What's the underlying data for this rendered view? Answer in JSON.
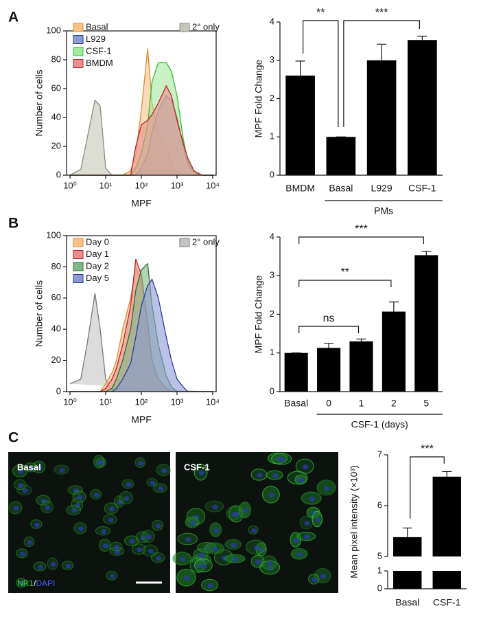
{
  "panel_labels": [
    "A",
    "B",
    "C"
  ],
  "micrographs": {
    "labels": [
      "Basal",
      "CSF-1"
    ],
    "stain": [
      "NR1",
      "/",
      "DAPI"
    ]
  },
  "chart_data": [
    {
      "type": "area",
      "log_x": true,
      "xlabel": "MPF",
      "ylabel": "Number of cells",
      "x": [
        1,
        2,
        3,
        5,
        7,
        10,
        15,
        20,
        30,
        50,
        70,
        100,
        150,
        200,
        300,
        500,
        700,
        1000,
        1500,
        2000,
        3000,
        5000,
        7000,
        10000
      ],
      "xlim": [
        0.8,
        12500
      ],
      "xticks": [
        {
          "value": 1,
          "label": "10⁰"
        },
        {
          "value": 10,
          "label": "10¹"
        },
        {
          "value": 100,
          "label": "10²"
        },
        {
          "value": 1000,
          "label": "10³"
        },
        {
          "value": 10000,
          "label": "10⁴"
        }
      ],
      "ylim": [
        0,
        100
      ],
      "yticks": [
        0,
        20,
        40,
        60,
        80,
        100
      ],
      "series": [
        {
          "name": "2° only",
          "legend": "top-right",
          "color": "#8a8a80",
          "fill": "#c6c6b8",
          "values": [
            0,
            4,
            25,
            52,
            48,
            5,
            0,
            0,
            0,
            0,
            0,
            0,
            0,
            0,
            0,
            0,
            0,
            0,
            0,
            0,
            0,
            0,
            0,
            0
          ]
        },
        {
          "name": "Basal",
          "color": "#e08a2e",
          "fill": "#f6c28c",
          "values": [
            0,
            0,
            0,
            0,
            0,
            0,
            0,
            0,
            0,
            3,
            15,
            45,
            88,
            50,
            30,
            20,
            8,
            2,
            0,
            0,
            0,
            0,
            0,
            0
          ]
        },
        {
          "name": "L929",
          "color": "#2a3a9e",
          "fill": "#8e9ad4",
          "values": [
            0,
            0,
            0,
            0,
            0,
            0,
            0,
            0,
            0,
            0,
            0,
            5,
            15,
            30,
            45,
            55,
            52,
            40,
            20,
            8,
            2,
            0,
            0,
            0
          ]
        },
        {
          "name": "CSF-1",
          "color": "#2fbf2f",
          "fill": "#a6e69e",
          "values": [
            0,
            0,
            0,
            0,
            0,
            0,
            0,
            0,
            0,
            0,
            5,
            15,
            35,
            65,
            78,
            78,
            72,
            55,
            25,
            10,
            2,
            0,
            0,
            0
          ]
        },
        {
          "name": "BMDM",
          "color": "#c02020",
          "fill": "#e89090",
          "values": [
            0,
            0,
            0,
            0,
            0,
            0,
            0,
            0,
            0,
            0,
            20,
            35,
            38,
            42,
            50,
            62,
            55,
            38,
            22,
            12,
            3,
            0,
            0,
            0
          ]
        }
      ]
    },
    {
      "type": "bar",
      "ylabel": "MPF Fold Change",
      "color": "#000000",
      "categories": [
        "BMDM",
        "Basal",
        "L929",
        "CSF-1"
      ],
      "values": [
        2.6,
        1,
        3,
        3.53
      ],
      "errors": [
        0.38,
        0,
        0.42,
        0.1
      ],
      "ylim": [
        0,
        4
      ],
      "yticks": [
        0,
        1,
        2,
        3,
        4
      ],
      "group": {
        "label": "PMs",
        "from": 1,
        "to": 3
      },
      "annotations": [
        {
          "text": "**",
          "from": 0,
          "to": 1
        },
        {
          "text": "***",
          "from": 1,
          "to": 3
        }
      ]
    },
    {
      "type": "area",
      "log_x": true,
      "xlabel": "MPF",
      "ylabel": "Number of cells",
      "x": [
        1,
        2,
        3,
        5,
        7,
        10,
        15,
        20,
        30,
        50,
        70,
        100,
        150,
        200,
        300,
        500,
        700,
        1000,
        1500,
        2000,
        3000,
        5000,
        7000,
        10000
      ],
      "xlim": [
        0.8,
        12500
      ],
      "xticks": [
        {
          "value": 1,
          "label": "10⁰"
        },
        {
          "value": 10,
          "label": "10¹"
        },
        {
          "value": 100,
          "label": "10²"
        },
        {
          "value": 1000,
          "label": "10³"
        },
        {
          "value": 10000,
          "label": "10⁴"
        }
      ],
      "ylim": [
        0,
        100
      ],
      "yticks": [
        0,
        20,
        40,
        60,
        80,
        100
      ],
      "series": [
        {
          "name": "2° only",
          "legend": "top-right",
          "color": "#777777",
          "fill": "#c4c4c4",
          "values": [
            5,
            8,
            30,
            63,
            40,
            8,
            0,
            0,
            0,
            0,
            0,
            0,
            0,
            0,
            0,
            0,
            0,
            0,
            0,
            0,
            0,
            0,
            0,
            0
          ]
        },
        {
          "name": "Day 0",
          "color": "#e08a2e",
          "fill": "#f6c28c",
          "values": [
            0,
            0,
            0,
            0,
            0,
            5,
            12,
            20,
            40,
            60,
            80,
            70,
            40,
            20,
            8,
            2,
            0,
            0,
            0,
            0,
            0,
            0,
            0,
            0
          ]
        },
        {
          "name": "Day 1",
          "color": "#c02020",
          "fill": "#e89090",
          "values": [
            0,
            0,
            0,
            0,
            0,
            2,
            8,
            15,
            30,
            55,
            85,
            75,
            45,
            20,
            8,
            2,
            0,
            0,
            0,
            0,
            0,
            0,
            0,
            0
          ]
        },
        {
          "name": "Day 2",
          "color": "#2e6e34",
          "fill": "#7fb886",
          "values": [
            0,
            0,
            0,
            0,
            0,
            0,
            2,
            8,
            20,
            40,
            65,
            78,
            82,
            55,
            30,
            10,
            3,
            0,
            0,
            0,
            0,
            0,
            0,
            0
          ]
        },
        {
          "name": "Day 5",
          "color": "#2a3a9e",
          "fill": "#8e9ad4",
          "values": [
            0,
            0,
            0,
            0,
            0,
            0,
            0,
            2,
            8,
            18,
            35,
            55,
            68,
            72,
            60,
            35,
            20,
            8,
            3,
            0,
            0,
            0,
            0,
            0
          ]
        }
      ]
    },
    {
      "type": "bar",
      "ylabel": "MPF Fold Change",
      "color": "#000000",
      "categories": [
        "Basal",
        "0",
        "1",
        "2",
        "5"
      ],
      "values": [
        1,
        1.13,
        1.3,
        2.07,
        3.53
      ],
      "errors": [
        0,
        0.12,
        0.06,
        0.25,
        0.1
      ],
      "ylim": [
        0,
        4
      ],
      "yticks": [
        0,
        1,
        2,
        3,
        4
      ],
      "group": {
        "label": "CSF-1 (days)",
        "from": 1,
        "to": 4
      },
      "annotations": [
        {
          "text": "ns",
          "from": 0,
          "to": 2
        },
        {
          "text": "**",
          "from": 0,
          "to": 3
        },
        {
          "text": "***",
          "from": 0,
          "to": 4
        }
      ]
    },
    {
      "type": "bar",
      "ylabel": "Mean pixel intensity (×10³)",
      "color": "#000000",
      "categories": [
        "Basal",
        "CSF-1"
      ],
      "values": [
        5.38,
        6.57
      ],
      "errors": [
        0.18,
        0.1
      ],
      "ylim": [
        0,
        7
      ],
      "yticks": [
        0,
        1,
        5,
        6,
        7
      ],
      "axis_break": [
        1,
        5
      ],
      "annotations": [
        {
          "text": "***",
          "from": 0,
          "to": 1
        }
      ]
    }
  ]
}
